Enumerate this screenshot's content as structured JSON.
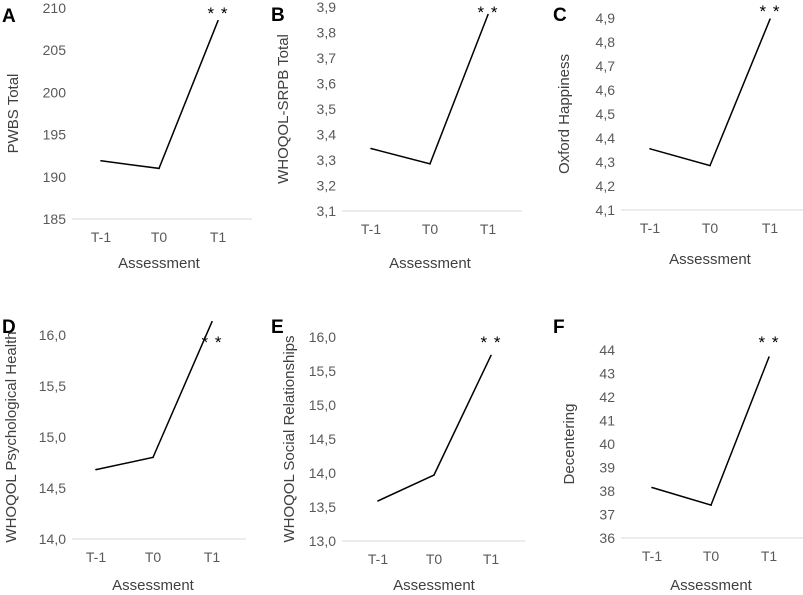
{
  "chart_data": [
    {
      "type": "line",
      "panel": "A",
      "ylabel": "PWBS Total",
      "xlabel": "Assessment",
      "categories": [
        "T-1",
        "T0",
        "T1"
      ],
      "values": [
        191.9,
        191.0,
        208.5
      ],
      "ylim": [
        185,
        210
      ],
      "yticks": [
        "185",
        "190",
        "195",
        "200",
        "205",
        "210"
      ],
      "significance": "**"
    },
    {
      "type": "line",
      "panel": "B",
      "ylabel": "WHOQOL-SRPB Total",
      "xlabel": "Assessment",
      "categories": [
        "T-1",
        "T0",
        "T1"
      ],
      "values": [
        3.345,
        3.285,
        3.87
      ],
      "ylim": [
        3.1,
        3.9
      ],
      "yticks": [
        "3,1",
        "3,2",
        "3,3",
        "3,4",
        "3,5",
        "3,6",
        "3,7",
        "3,8",
        "3,9"
      ],
      "significance": "**"
    },
    {
      "type": "line",
      "panel": "C",
      "ylabel": "Oxford Happiness",
      "xlabel": "Assessment",
      "categories": [
        "T-1",
        "T0",
        "T1"
      ],
      "values": [
        4.355,
        4.285,
        4.895
      ],
      "ylim": [
        4.1,
        4.9
      ],
      "yticks": [
        "4,1",
        "4,2",
        "4,3",
        "4,4",
        "4,5",
        "4,6",
        "4,7",
        "4,8",
        "4,9"
      ],
      "significance": "**"
    },
    {
      "type": "line",
      "panel": "D",
      "ylabel": "WHOQOL Psychological Health",
      "xlabel": "Assessment",
      "categories": [
        "T-1",
        "T0",
        "T1"
      ],
      "values": [
        14.68,
        14.8,
        16.13
      ],
      "ylim": [
        14.0,
        16.0
      ],
      "yticks": [
        "14,0",
        "14,5",
        "15,0",
        "15,5",
        "16,0"
      ],
      "significance": "**"
    },
    {
      "type": "line",
      "panel": "E",
      "ylabel": "WHOQOL Social Relationships",
      "xlabel": "Assessment",
      "categories": [
        "T-1",
        "T0",
        "T1"
      ],
      "values": [
        13.59,
        13.97,
        15.73
      ],
      "ylim": [
        13.0,
        16.0
      ],
      "yticks": [
        "13,0",
        "13,5",
        "14,0",
        "14,5",
        "15,0",
        "15,5",
        "16,0"
      ],
      "significance": "**"
    },
    {
      "type": "line",
      "panel": "F",
      "ylabel": "Decentering",
      "xlabel": "Assessment",
      "categories": [
        "T-1",
        "T0",
        "T1"
      ],
      "values": [
        38.15,
        37.4,
        43.7
      ],
      "ylim": [
        36,
        44
      ],
      "yticks": [
        "36",
        "37",
        "38",
        "39",
        "40",
        "41",
        "42",
        "43",
        "44"
      ],
      "significance": "**"
    }
  ]
}
